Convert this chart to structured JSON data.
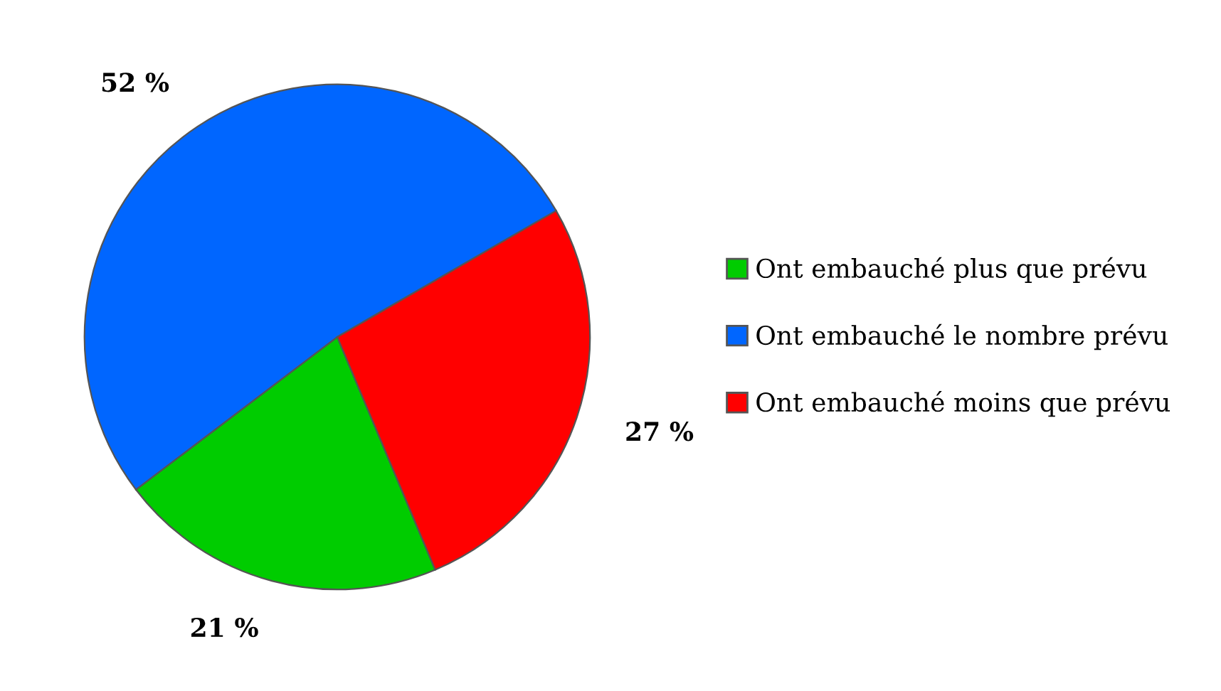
{
  "chart_data": {
    "type": "pie",
    "categories": [
      "Ont embauché plus que prévu",
      "Ont embauché le nombre prévu",
      "Ont embauché moins que prévu"
    ],
    "values": [
      21,
      52,
      27
    ],
    "value_labels": [
      "21 %",
      "52 %",
      "27 %"
    ],
    "colors": [
      "#00cc00",
      "#0066ff",
      "#ff0000"
    ],
    "legend": "right"
  }
}
